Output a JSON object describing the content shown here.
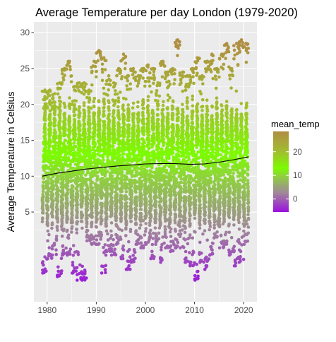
{
  "chart_data": {
    "type": "scatter",
    "title": "Average Temperature per day London (1979-2020)",
    "xlabel": "",
    "ylabel": "Average Temperature in Celsius",
    "xlim": [
      1977.3,
      2022.7
    ],
    "ylim": [
      -7.5,
      31.5
    ],
    "x_ticks": [
      1980,
      1990,
      2000,
      2010,
      2020
    ],
    "y_ticks": [
      5,
      10,
      15,
      20,
      25,
      30
    ],
    "grid": true,
    "panel_background": "#ebebeb",
    "grid_color": "#ffffff",
    "point_color_variable": "mean_temp",
    "trend_line": {
      "color": "#000000",
      "x": [
        1979,
        1982,
        1985,
        1988,
        1991,
        1994,
        1997,
        2000,
        2003,
        2006,
        2009,
        2012,
        2015,
        2018,
        2021
      ],
      "y": [
        10.0,
        10.4,
        10.7,
        11.0,
        11.2,
        11.4,
        11.55,
        11.7,
        11.75,
        11.75,
        11.65,
        11.7,
        11.95,
        12.3,
        12.7
      ]
    },
    "yearly_range": {
      "years": [
        1979,
        1980,
        1981,
        1982,
        1983,
        1984,
        1985,
        1986,
        1987,
        1988,
        1989,
        1990,
        1991,
        1992,
        1993,
        1994,
        1995,
        1996,
        1997,
        1998,
        1999,
        2000,
        2001,
        2002,
        2003,
        2004,
        2005,
        2006,
        2007,
        2008,
        2009,
        2010,
        2011,
        2012,
        2013,
        2014,
        2015,
        2016,
        2017,
        2018,
        2019,
        2020
      ],
      "min": [
        -3.5,
        -1.5,
        -1.0,
        -4.0,
        -1.0,
        -1.0,
        -3.5,
        -4.5,
        -4.5,
        1.0,
        0.5,
        0.5,
        -3.5,
        -0.5,
        -1.0,
        0.5,
        -1.5,
        -3.0,
        -2.0,
        0.5,
        0.0,
        0.5,
        -1.5,
        0.5,
        -2.0,
        0.0,
        -0.5,
        0.0,
        0.0,
        -2.0,
        -2.5,
        -4.5,
        -2.0,
        -3.0,
        -1.0,
        1.5,
        0.0,
        0.5,
        -1.0,
        -2.5,
        -2.0,
        0.5
      ],
      "max": [
        22.0,
        22.0,
        21.5,
        23.0,
        25.0,
        26.0,
        22.5,
        23.0,
        23.0,
        22.0,
        26.0,
        27.5,
        26.5,
        24.0,
        23.0,
        25.0,
        27.0,
        24.0,
        25.0,
        24.0,
        25.0,
        25.5,
        25.0,
        23.0,
        26.0,
        24.5,
        25.0,
        29.0,
        24.5,
        24.0,
        25.0,
        26.5,
        24.0,
        26.0,
        27.0,
        25.0,
        27.0,
        28.5,
        25.0,
        28.5,
        29.0,
        28.5
      ]
    },
    "legend": {
      "title": "mean_temp",
      "position": "right",
      "range": [
        -5.5,
        28.6
      ],
      "breaks": [
        0,
        10,
        20
      ],
      "colors": [
        {
          "value": -5.5,
          "color": "#9b10e0"
        },
        {
          "value": 2.5,
          "color": "#a0869a"
        },
        {
          "value": 10,
          "color": "#8ed43a"
        },
        {
          "value": 13,
          "color": "#7cfc00"
        },
        {
          "value": 20,
          "color": "#a2bd2f"
        },
        {
          "value": 28.6,
          "color": "#b08d43"
        }
      ]
    }
  }
}
